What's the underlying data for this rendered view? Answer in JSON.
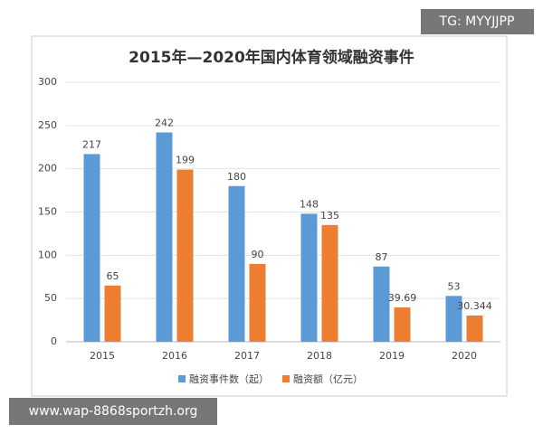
{
  "chart_data": {
    "type": "bar",
    "title": "2015年—2020年国内体育领域融资事件",
    "categories": [
      "2015",
      "2016",
      "2017",
      "2018",
      "2019",
      "2020"
    ],
    "series": [
      {
        "name": "融资事件数（起）",
        "color": "#5b9bd5",
        "values": [
          217,
          242,
          180,
          148,
          87,
          53
        ]
      },
      {
        "name": "融资额（亿元）",
        "color": "#ed7d31",
        "values": [
          65,
          199,
          90,
          135,
          39.69,
          30.344
        ]
      }
    ],
    "ylim": [
      0,
      300
    ],
    "yticks": [
      0,
      50,
      100,
      150,
      200,
      250,
      300
    ],
    "grid": true,
    "legend": "bottom"
  },
  "watermarks": [
    "TG: MYYJJPP",
    "www.wap-8868sportzh.org"
  ]
}
